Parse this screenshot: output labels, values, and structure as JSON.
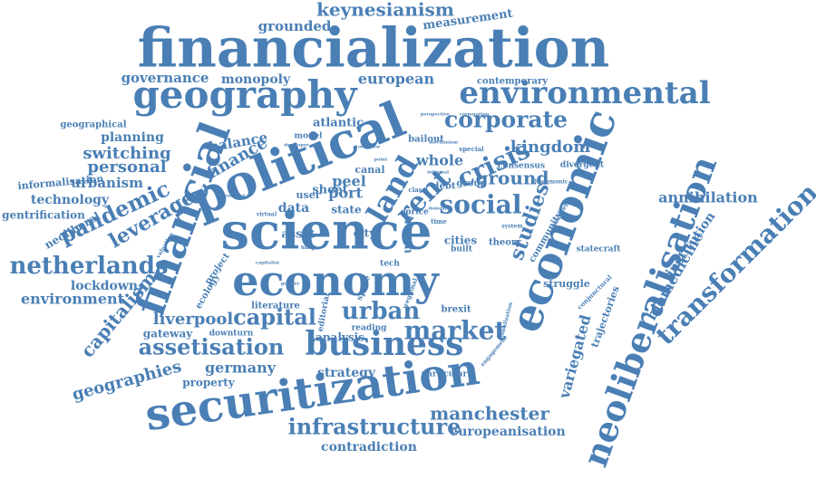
{
  "word_color": "#4a7fb5",
  "background_color": "#ffffff",
  "words": [
    {
      "text": "keynesianism"
    },
    {
      "text": "measurement"
    },
    {
      "text": "grounded"
    },
    {
      "text": "financialization"
    },
    {
      "text": "governance"
    },
    {
      "text": "monopoly"
    },
    {
      "text": "european"
    },
    {
      "text": "contemporary"
    },
    {
      "text": "geography"
    },
    {
      "text": "environmental"
    },
    {
      "text": "perspective"
    },
    {
      "text": "corporation"
    },
    {
      "text": "corporate"
    },
    {
      "text": "geographical"
    },
    {
      "text": "atlantic"
    },
    {
      "text": "planning"
    },
    {
      "text": "balance"
    },
    {
      "text": "model"
    },
    {
      "text": "developer"
    },
    {
      "text": "overview"
    },
    {
      "text": "mechanism"
    },
    {
      "text": "bailout"
    },
    {
      "text": "special"
    },
    {
      "text": "kingdom"
    },
    {
      "text": "switching"
    },
    {
      "text": "political"
    },
    {
      "text": "finance"
    },
    {
      "text": "crisis"
    },
    {
      "text": "whole"
    },
    {
      "text": "divergent"
    },
    {
      "text": "personal"
    },
    {
      "text": "point"
    },
    {
      "text": "informal"
    },
    {
      "text": "consensus"
    },
    {
      "text": "urbanism"
    },
    {
      "text": "informalisation"
    },
    {
      "text": "financial"
    },
    {
      "text": "land"
    },
    {
      "text": "canal"
    },
    {
      "text": "rent"
    },
    {
      "text": "ground"
    },
    {
      "text": "hegemonic"
    },
    {
      "text": "technology"
    },
    {
      "text": "investment"
    },
    {
      "text": "peel"
    },
    {
      "text": "class"
    },
    {
      "text": "debt"
    },
    {
      "text": "group"
    },
    {
      "text": "economic"
    },
    {
      "text": "pandemic"
    },
    {
      "text": "user"
    },
    {
      "text": "sheet"
    },
    {
      "text": "port"
    },
    {
      "text": "social"
    },
    {
      "text": "annihilation"
    },
    {
      "text": "gentrification"
    },
    {
      "text": "leverage"
    },
    {
      "text": "data"
    },
    {
      "text": "state"
    },
    {
      "text": "price"
    },
    {
      "text": "domestic"
    },
    {
      "text": "neoliberal"
    },
    {
      "text": "science"
    },
    {
      "text": "time"
    },
    {
      "text": "studies"
    },
    {
      "text": "community"
    },
    {
      "text": "insurgent"
    },
    {
      "text": "neoliberalisation"
    },
    {
      "text": "transformation"
    },
    {
      "text": "virtual"
    },
    {
      "text": "asset"
    },
    {
      "text": "city"
    },
    {
      "text": "union"
    },
    {
      "text": "cities"
    },
    {
      "text": "theory"
    },
    {
      "text": "system"
    },
    {
      "text": "valuation"
    },
    {
      "text": "ship"
    },
    {
      "text": "built"
    },
    {
      "text": "statecraft"
    },
    {
      "text": "institution"
    },
    {
      "text": "netherlands"
    },
    {
      "text": "tech"
    },
    {
      "text": "capitalist"
    },
    {
      "text": "biomedicine"
    },
    {
      "text": "lockdown"
    },
    {
      "text": "project"
    },
    {
      "text": "economy"
    },
    {
      "text": "greater"
    },
    {
      "text": "struggle"
    },
    {
      "text": "conjunctural"
    },
    {
      "text": "ecology"
    },
    {
      "text": "space"
    },
    {
      "text": "regional"
    },
    {
      "text": "environment"
    },
    {
      "text": "literature"
    },
    {
      "text": "editorial"
    },
    {
      "text": "capitalism"
    },
    {
      "text": "brexit"
    },
    {
      "text": "trajectories"
    },
    {
      "text": "liverpool"
    },
    {
      "text": "capital"
    },
    {
      "text": "urban"
    },
    {
      "text": "gateway"
    },
    {
      "text": "downturn"
    },
    {
      "text": "reading"
    },
    {
      "text": "globalization"
    },
    {
      "text": "variegated"
    },
    {
      "text": "market"
    },
    {
      "text": "analysis"
    },
    {
      "text": "engagement"
    },
    {
      "text": "assetisation"
    },
    {
      "text": "business"
    },
    {
      "text": "geographies"
    },
    {
      "text": "germany"
    },
    {
      "text": "strategy"
    },
    {
      "text": "particular"
    },
    {
      "text": "property"
    },
    {
      "text": "securitization"
    },
    {
      "text": "manchester"
    },
    {
      "text": "infrastructure"
    },
    {
      "text": "europeanisation"
    },
    {
      "text": "contradiction"
    }
  ]
}
